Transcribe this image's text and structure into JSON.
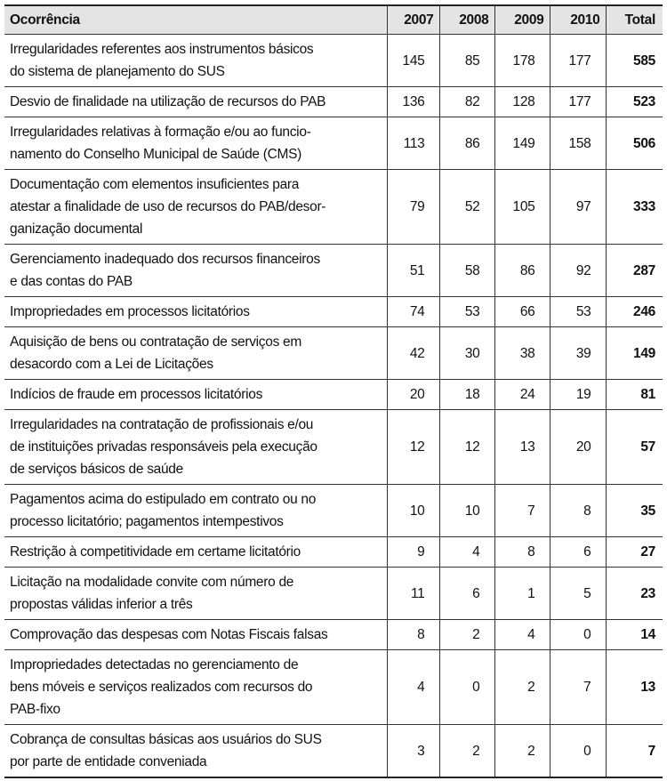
{
  "table": {
    "header": [
      "Ocorrência",
      "2007",
      "2008",
      "2009",
      "2010",
      "Total"
    ],
    "rows": [
      [
        [
          "Irregularidades referentes aos instrumentos básicos",
          "do sistema de planejamento do SUS"
        ],
        145,
        85,
        178,
        177,
        585
      ],
      [
        [
          "Desvio de finalidade na utilização de recursos do PAB"
        ],
        136,
        82,
        128,
        177,
        523
      ],
      [
        [
          "Irregularidades relativas à formação e/ou ao funcio-",
          "namento do Conselho Municipal de Saúde (CMS)"
        ],
        113,
        86,
        149,
        158,
        506
      ],
      [
        [
          "Documentação com elementos insuficientes para",
          "atestar a finalidade de uso de recursos do PAB/desor-",
          "ganização documental"
        ],
        79,
        52,
        105,
        97,
        333
      ],
      [
        [
          "Gerenciamento inadequado dos recursos financeiros",
          "e das contas do PAB"
        ],
        51,
        58,
        86,
        92,
        287
      ],
      [
        [
          "Impropriedades em processos licitatórios"
        ],
        74,
        53,
        66,
        53,
        246
      ],
      [
        [
          "Aquisição de bens ou contratação de serviços em",
          "desacordo com a Lei de Licitações"
        ],
        42,
        30,
        38,
        39,
        149
      ],
      [
        [
          "Indícios de fraude em processos licitatórios"
        ],
        20,
        18,
        24,
        19,
        81
      ],
      [
        [
          "Irregularidades na contratação de profissionais e/ou",
          "de instituições privadas responsáveis pela execução",
          "de serviços básicos de saúde"
        ],
        12,
        12,
        13,
        20,
        57
      ],
      [
        [
          "Pagamentos acima do estipulado em contrato ou no",
          "processo licitatório; pagamentos intempestivos"
        ],
        10,
        10,
        7,
        8,
        35
      ],
      [
        [
          "Restrição à competitividade em certame licitatório"
        ],
        9,
        4,
        8,
        6,
        27
      ],
      [
        [
          "Licitação na modalidade convite com número de",
          "propostas válidas inferior a três"
        ],
        11,
        6,
        1,
        5,
        23
      ],
      [
        [
          "Comprovação das despesas com Notas Fiscais falsas"
        ],
        8,
        2,
        4,
        0,
        14
      ],
      [
        [
          "Impropriedades detectadas no gerenciamento de",
          "bens móveis e serviços realizados com recursos do",
          "PAB-fixo"
        ],
        4,
        0,
        2,
        7,
        13
      ],
      [
        [
          "Cobrança de consultas básicas aos usuários do SUS",
          "por parte de entidade conveniada"
        ],
        3,
        2,
        2,
        0,
        7
      ]
    ]
  }
}
